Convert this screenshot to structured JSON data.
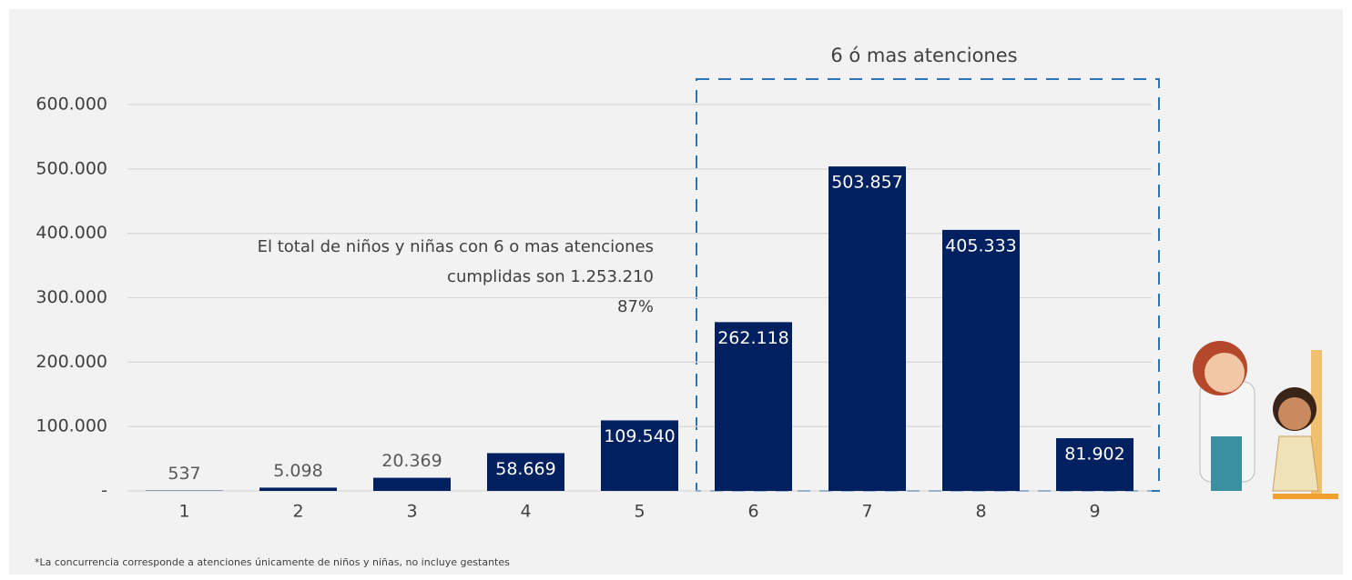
{
  "chart_data": {
    "type": "bar",
    "categories": [
      "1",
      "2",
      "3",
      "4",
      "5",
      "6",
      "7",
      "8",
      "9"
    ],
    "values": [
      537,
      5098,
      20369,
      58669,
      109540,
      262118,
      503857,
      405333,
      81902
    ],
    "value_labels": [
      "537",
      "5.098",
      "20.369",
      "58.669",
      "109.540",
      "262.118",
      "503.857",
      "405.333",
      "81.902"
    ],
    "color": "#002060",
    "ylim": [
      0,
      600000
    ],
    "yticks": [
      {
        "value": 0,
        "label": "-"
      },
      {
        "value": 100000,
        "label": "100.000"
      },
      {
        "value": 200000,
        "label": "200.000"
      },
      {
        "value": 300000,
        "label": "300.000"
      },
      {
        "value": 400000,
        "label": "400.000"
      },
      {
        "value": 500000,
        "label": "500.000"
      },
      {
        "value": 600000,
        "label": "600.000"
      }
    ],
    "grid": true,
    "box_label": "6 ó mas atenciones",
    "annotation": [
      "El total de niños y niñas con 6 o mas atenciones",
      "cumplidas son 1.253.210",
      "87%"
    ],
    "note": "*La concurrencia corresponde a atenciones únicamente de niños y niñas, no incluye gestantes"
  }
}
